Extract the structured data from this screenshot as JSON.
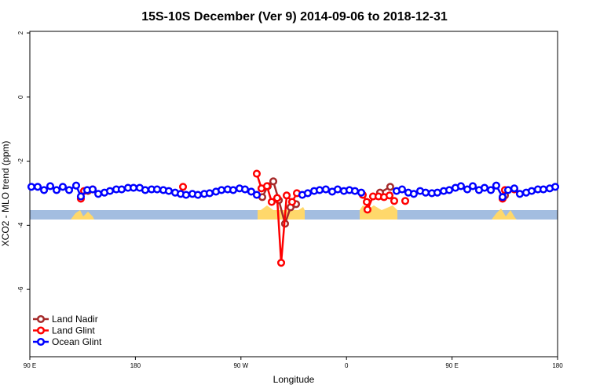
{
  "chart_data": {
    "type": "line",
    "title": "15S-10S December (Ver 9)   2014-09-06 to 2018-12-31",
    "x_label": "Longitude",
    "y_label": "XCO2 - MLO trend (ppm)",
    "xlim": [
      90,
      540
    ],
    "ylim": [
      -8.1,
      2.05
    ],
    "xticks": [
      {
        "value": 90,
        "label": "90 E"
      },
      {
        "value": 180,
        "label": "180"
      },
      {
        "value": 270,
        "label": "90 W"
      },
      {
        "value": 360,
        "label": "0"
      },
      {
        "value": 450,
        "label": "90 E"
      },
      {
        "value": 540,
        "label": "180"
      }
    ],
    "yticks": [
      -6,
      -4,
      -2,
      0,
      2
    ],
    "legend": "bottom-left",
    "series": [
      {
        "name": "Land Nadir",
        "color": "#a52a2a",
        "x": [
          139.6,
          200,
          288.2,
          292.9,
          297.6,
          302.3,
          307.6,
          312.3,
          317.0,
          350,
          388.6,
          397.3,
          450,
          495.1
        ],
        "values": [
          -2.93,
          null,
          -3.12,
          -2.78,
          -2.63,
          -3.22,
          -3.95,
          -3.44,
          -3.34,
          null,
          -2.98,
          -2.8,
          null,
          -3.07
        ]
      },
      {
        "name": "Land Glint",
        "color": "#ff0000",
        "x": [
          133.5,
          136.2,
          143.6,
          180,
          220.6,
          250,
          283.5,
          287.5,
          292.2,
          296.2,
          300.9,
          304.3,
          309.0,
          313.6,
          317.7,
          350,
          373.9,
          377.3,
          377.9,
          382.6,
          387.3,
          392.0,
          396.7,
          400.7,
          405,
          410.1,
          450,
          493.1,
          495.1,
          503.1
        ],
        "values": [
          -3.17,
          -2.93,
          -2.88,
          null,
          -2.8,
          null,
          -2.39,
          -2.85,
          -2.78,
          -3.27,
          -3.15,
          -5.17,
          -3.07,
          -3.27,
          -3.0,
          null,
          -3.05,
          -3.27,
          -3.51,
          -3.1,
          -3.1,
          -3.12,
          -3.07,
          -3.24,
          null,
          -3.24,
          null,
          -3.17,
          -2.9,
          -2.88
        ]
      },
      {
        "name": "Ocean Glint",
        "color": "#0000ff",
        "x": [
          91.3,
          96.7,
          102.1,
          107.4,
          112.8,
          118.1,
          123.5,
          129.5,
          133.5,
          138.9,
          143.6,
          148.3,
          153.6,
          158.3,
          163.7,
          168.3,
          173.7,
          178.4,
          183.7,
          188.4,
          193.8,
          198.5,
          203.8,
          208.5,
          213.9,
          218.6,
          223.2,
          228.6,
          233.3,
          238.7,
          243.3,
          248.7,
          253.4,
          258.7,
          263.4,
          268.8,
          273.5,
          278.8,
          283.5,
          300,
          322.3,
          327.0,
          332.4,
          337.1,
          342.4,
          347.8,
          352.5,
          357.8,
          362.5,
          367.2,
          372.6,
          390,
          402.7,
          407.4,
          412.7,
          417.4,
          422.8,
          427.5,
          432.8,
          437.5,
          442.9,
          447.6,
          452.9,
          457.6,
          463.0,
          467.7,
          473.0,
          477.7,
          483.1,
          487.7,
          493.1,
          497.8,
          503.1,
          507.8,
          513.2,
          517.9,
          523.2,
          527.9,
          533.3,
          538.0
        ],
        "values": [
          -2.8,
          -2.8,
          -2.9,
          -2.78,
          -2.9,
          -2.8,
          -2.9,
          -2.76,
          -3.1,
          -2.9,
          -2.88,
          -3.02,
          -2.98,
          -2.93,
          -2.88,
          -2.88,
          -2.83,
          -2.83,
          -2.83,
          -2.9,
          -2.88,
          -2.88,
          -2.9,
          -2.93,
          -2.98,
          -3.02,
          -3.05,
          -3.02,
          -3.05,
          -3.02,
          -3.0,
          -2.95,
          -2.9,
          -2.88,
          -2.9,
          -2.85,
          -2.88,
          -2.95,
          -3.05,
          null,
          -3.05,
          -3.0,
          -2.93,
          -2.9,
          -2.88,
          -2.95,
          -2.88,
          -2.93,
          -2.9,
          -2.93,
          -2.98,
          null,
          -2.93,
          -2.88,
          -2.98,
          -3.02,
          -2.93,
          -2.98,
          -3.0,
          -2.98,
          -2.93,
          -2.9,
          -2.83,
          -2.78,
          -2.88,
          -2.78,
          -2.9,
          -2.83,
          -2.9,
          -2.76,
          -3.12,
          -2.9,
          -2.85,
          -3.02,
          -2.98,
          -2.93,
          -2.88,
          -2.88,
          -2.85,
          -2.8
        ]
      }
    ]
  }
}
